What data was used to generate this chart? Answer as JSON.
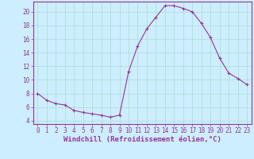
{
  "x": [
    0,
    1,
    2,
    3,
    4,
    5,
    6,
    7,
    8,
    9,
    10,
    11,
    12,
    13,
    14,
    15,
    16,
    17,
    18,
    19,
    20,
    21,
    22,
    23
  ],
  "y": [
    8.0,
    7.0,
    6.5,
    6.3,
    5.5,
    5.2,
    5.0,
    4.8,
    4.5,
    4.8,
    11.2,
    15.0,
    17.5,
    19.2,
    20.9,
    20.9,
    20.5,
    20.0,
    18.3,
    16.2,
    13.2,
    11.0,
    10.2,
    9.3
  ],
  "line_color": "#993399",
  "marker": "+",
  "markersize": 3,
  "linewidth": 0.8,
  "background_color": "#cceeff",
  "grid_color": "#aaddcc",
  "xlabel": "Windchill (Refroidissement éolien,°C)",
  "ylabel": "",
  "xlim": [
    -0.5,
    23.5
  ],
  "ylim": [
    3.5,
    21.5
  ],
  "xticks": [
    0,
    1,
    2,
    3,
    4,
    5,
    6,
    7,
    8,
    9,
    10,
    11,
    12,
    13,
    14,
    15,
    16,
    17,
    18,
    19,
    20,
    21,
    22,
    23
  ],
  "yticks": [
    4,
    6,
    8,
    10,
    12,
    14,
    16,
    18,
    20
  ],
  "tick_fontsize": 5.5,
  "xlabel_fontsize": 6.5,
  "spine_color": "#993399",
  "tick_color": "#993399"
}
